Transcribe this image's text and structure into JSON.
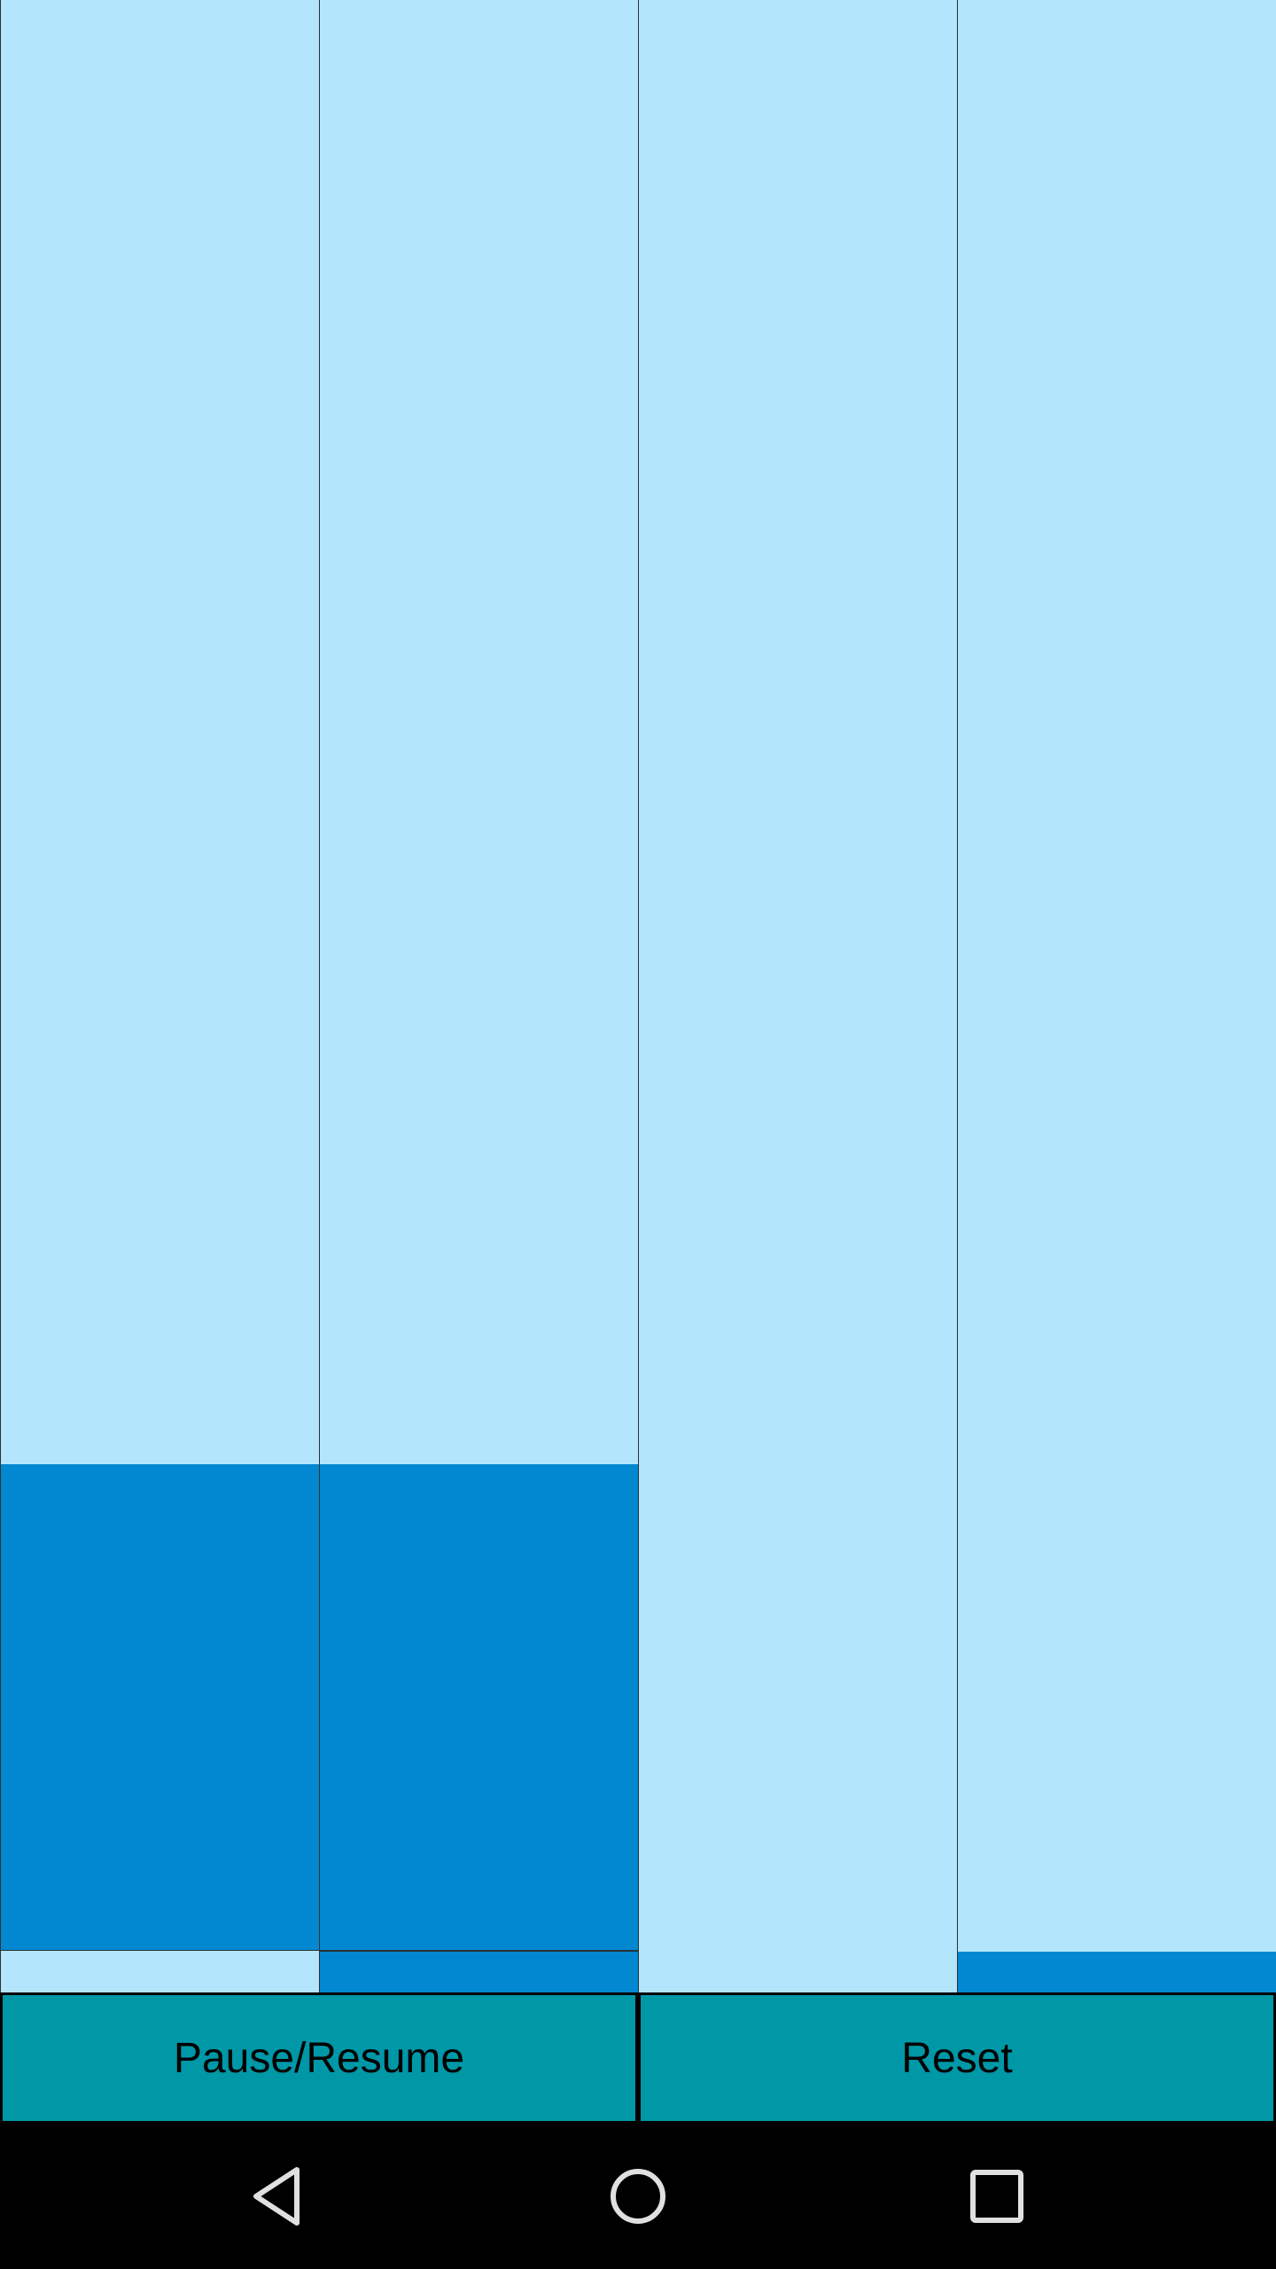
{
  "buttons": {
    "pause_resume_label": "Pause/Resume",
    "reset_label": "Reset"
  },
  "colors": {
    "board_background": "#b3e5fc",
    "tile_active": "#0288d1",
    "button_background": "#0097a7",
    "grid_line": "#263238",
    "nav_background": "#000000",
    "nav_icon": "#e0e0e0"
  },
  "navbar": {
    "back_icon": "back-triangle",
    "home_icon": "home-circle",
    "recent_icon": "recent-square"
  },
  "board": {
    "columns": 4
  }
}
